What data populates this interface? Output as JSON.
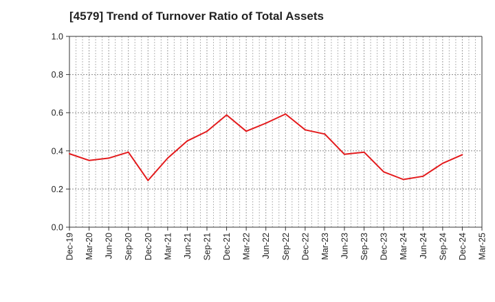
{
  "chart_data": {
    "type": "line",
    "title": "[4579]  Trend of Turnover Ratio of Total Assets",
    "xlabel": "",
    "ylabel": "",
    "ylim": [
      0.0,
      1.0
    ],
    "y_ticks": [
      "0.0",
      "0.2",
      "0.4",
      "0.6",
      "0.8",
      "1.0"
    ],
    "x_ticks": [
      "Dec-19",
      "Mar-20",
      "Jun-20",
      "Sep-20",
      "Dec-20",
      "Mar-21",
      "Jun-21",
      "Sep-21",
      "Dec-21",
      "Mar-22",
      "Jun-22",
      "Sep-22",
      "Dec-22",
      "Mar-23",
      "Jun-23",
      "Sep-23",
      "Dec-23",
      "Mar-24",
      "Jun-24",
      "Sep-24",
      "Dec-24",
      "Mar-25"
    ],
    "grid": true,
    "line_color": "#e31a1c",
    "series": [
      {
        "x": [
          "Dec-19",
          "Mar-20",
          "Jun-20",
          "Sep-20",
          "Dec-20",
          "Mar-21",
          "Jun-21",
          "Sep-21",
          "Dec-21",
          "Mar-22",
          "Jun-22",
          "Sep-22",
          "Dec-22",
          "Mar-23",
          "Jun-23",
          "Sep-23",
          "Dec-23",
          "Mar-24",
          "Jun-24",
          "Sep-24",
          "Dec-24"
        ],
        "values": [
          0.385,
          0.35,
          0.362,
          0.393,
          0.245,
          0.362,
          0.452,
          0.502,
          0.588,
          0.503,
          0.545,
          0.593,
          0.51,
          0.488,
          0.382,
          0.393,
          0.29,
          0.25,
          0.267,
          0.335,
          0.38
        ]
      }
    ]
  }
}
